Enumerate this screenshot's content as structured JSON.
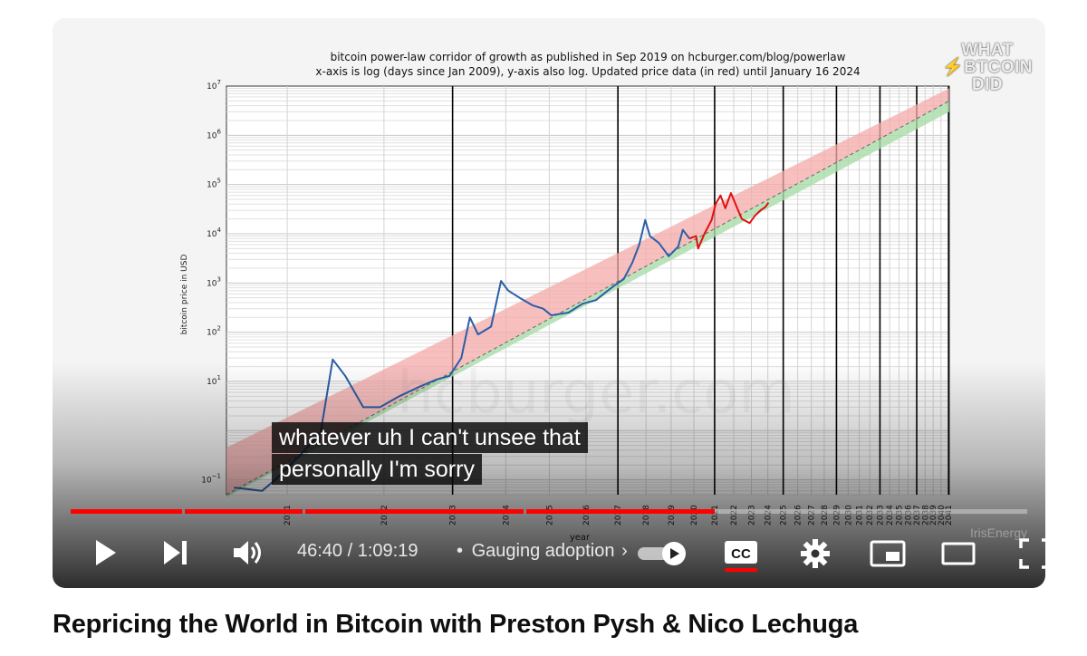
{
  "chart": {
    "title_line1": "bitcoin power-law corridor of growth as published in Sep 2019 on hcburger.com/blog/powerlaw",
    "title_line2": "x-axis is log (days since Jan 2009), y-axis also log. Updated price data (in red) until January 16 2024",
    "ylabel": "bitcoin price in USD",
    "xlabel": "year",
    "background_watermark": "hcburger.com"
  },
  "chart_data": {
    "type": "line",
    "x_scale": "log",
    "y_scale": "log",
    "ylim": [
      0.05,
      10000000
    ],
    "y_ticks": [
      {
        "base": "10",
        "exp": "7",
        "value": 10000000
      },
      {
        "base": "10",
        "exp": "6",
        "value": 1000000
      },
      {
        "base": "10",
        "exp": "5",
        "value": 100000
      },
      {
        "base": "10",
        "exp": "4",
        "value": 10000
      },
      {
        "base": "10",
        "exp": "3",
        "value": 1000
      },
      {
        "base": "10",
        "exp": "2",
        "value": 100
      },
      {
        "base": "10",
        "exp": "1",
        "value": 10
      },
      {
        "base": "10",
        "exp": "−1",
        "value": 0.1
      }
    ],
    "x_ticks": [
      "2011",
      "2012",
      "2013",
      "2014",
      "2015",
      "2016",
      "2017",
      "2018",
      "2019",
      "2020",
      "2021",
      "2022",
      "2023",
      "2024",
      "2025",
      "2026",
      "2027",
      "2028",
      "2029",
      "2030",
      "2031",
      "2032",
      "2033",
      "2034",
      "2035",
      "2036",
      "2037",
      "2038",
      "2039",
      "2040",
      "2041"
    ],
    "bold_year_lines": [
      "2013",
      "2017",
      "2021",
      "2025",
      "2029",
      "2033",
      "2037",
      "2041"
    ],
    "corridor": {
      "upper_band_color": "#f6a9a9",
      "lower_band_color": "#a9dca9",
      "upper_start": 0.45,
      "upper_end": 9000000,
      "mid_start": 0.05,
      "mid_end": 5000000,
      "lower_start": 0.045,
      "lower_end": 3000000
    },
    "series": [
      {
        "color": "#2a5ea8",
        "points": [
          [
            "2010.6",
            0.07
          ],
          [
            "2010.8",
            0.06
          ],
          [
            "2010.9",
            0.1
          ],
          [
            "2011.1",
            0.3
          ],
          [
            "2011.3",
            0.9
          ],
          [
            "2011.42",
            28
          ],
          [
            "2011.55",
            13
          ],
          [
            "2011.75",
            3
          ],
          [
            "2011.95",
            3
          ],
          [
            "2012.2",
            5
          ],
          [
            "2012.5",
            8
          ],
          [
            "2012.75",
            11
          ],
          [
            "2012.95",
            13
          ],
          [
            "2013.15",
            30
          ],
          [
            "2013.3",
            200
          ],
          [
            "2013.45",
            90
          ],
          [
            "2013.7",
            130
          ],
          [
            "2013.9",
            1100
          ],
          [
            "2014.05",
            700
          ],
          [
            "2014.3",
            500
          ],
          [
            "2014.6",
            350
          ],
          [
            "2014.85",
            300
          ],
          [
            "2015.05",
            220
          ],
          [
            "2015.5",
            250
          ],
          [
            "2015.9",
            380
          ],
          [
            "2016.3",
            450
          ],
          [
            "2016.6",
            650
          ],
          [
            "2016.9",
            900
          ],
          [
            "2017.2",
            1200
          ],
          [
            "2017.5",
            2600
          ],
          [
            "2017.75",
            6000
          ],
          [
            "2017.97",
            19000
          ],
          [
            "2018.15",
            9000
          ],
          [
            "2018.5",
            6500
          ],
          [
            "2018.9",
            3500
          ],
          [
            "2019.3",
            5500
          ],
          [
            "2019.5",
            12000
          ],
          [
            "2019.8",
            8000
          ]
        ]
      },
      {
        "color": "#e01010",
        "points": [
          [
            "2019.8",
            8000
          ],
          [
            "2020.1",
            9000
          ],
          [
            "2020.2",
            5000
          ],
          [
            "2020.5",
            10000
          ],
          [
            "2020.85",
            19000
          ],
          [
            "2021.05",
            40000
          ],
          [
            "2021.3",
            60000
          ],
          [
            "2021.55",
            33000
          ],
          [
            "2021.85",
            67000
          ],
          [
            "2022.1",
            40000
          ],
          [
            "2022.45",
            20000
          ],
          [
            "2022.9",
            16500
          ],
          [
            "2023.2",
            23000
          ],
          [
            "2023.55",
            30000
          ],
          [
            "2023.85",
            35000
          ],
          [
            "2024.04",
            43000
          ]
        ]
      }
    ]
  },
  "captions": {
    "line1": "whatever uh I can't unsee that",
    "line2": "personally I'm sorry"
  },
  "watermark": {
    "line1": "WHAT",
    "line2_bolt": "⚡",
    "line2_rest": "BTCOIN",
    "line3": "DID",
    "sponsor": "IrisEnergy"
  },
  "player": {
    "time_current": "46:40",
    "time_separator": "/",
    "time_total": "1:09:19",
    "bullet": "•",
    "chapter": "Gauging adoption",
    "chapter_chevron": "›",
    "cc_label": "CC",
    "progress_played_fraction": 0.673,
    "autoplay_on": true,
    "cc_on": true
  },
  "video_title": "Repricing the World in Bitcoin with Preston Pysh & Nico Lechuga",
  "colors": {
    "progress_red": "#ff0000",
    "caption_bg": "#080808",
    "title_text": "#0f0f0f"
  }
}
